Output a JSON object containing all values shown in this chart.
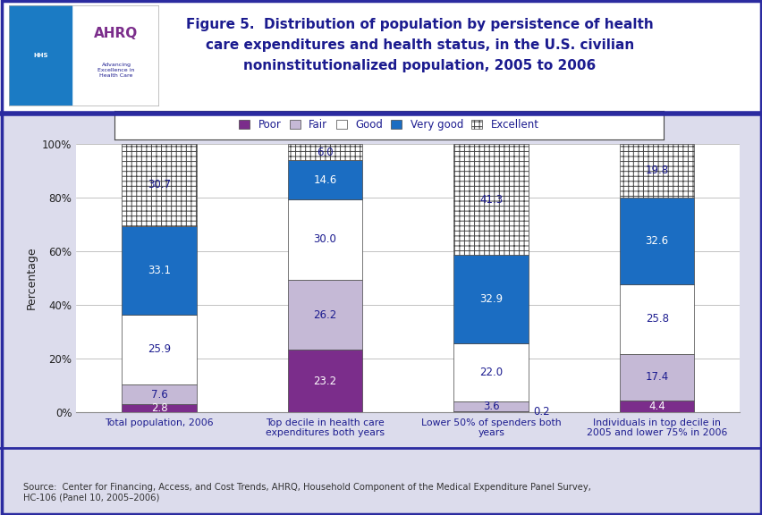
{
  "categories": [
    "Total population, 2006",
    "Top decile in health care\nexpenditures both years",
    "Lower 50% of spenders both\nyears",
    "Individuals in top decile in\n2005 and lower 75% in 2006"
  ],
  "series": {
    "Poor": [
      2.8,
      23.2,
      0.2,
      4.4
    ],
    "Fair": [
      7.6,
      26.2,
      3.6,
      17.4
    ],
    "Good": [
      25.9,
      30.0,
      22.0,
      25.8
    ],
    "Very good": [
      33.1,
      14.6,
      32.9,
      32.6
    ],
    "Excellent": [
      30.7,
      6.0,
      41.3,
      19.8
    ]
  },
  "colors": {
    "Poor": "#7B2D8B",
    "Fair": "#C5B9D6",
    "Good": "#FFFFFF",
    "Very good": "#1B6DC2",
    "Excellent": "#FFFFFF"
  },
  "hatch": {
    "Poor": "",
    "Fair": "",
    "Good": "",
    "Very good": "",
    "Excellent": "+++"
  },
  "label_outside": {
    "Poor": [
      true,
      true,
      true,
      true
    ],
    "Fair": [
      false,
      false,
      false,
      false
    ],
    "Good": [
      false,
      false,
      false,
      false
    ],
    "Very good": [
      false,
      false,
      false,
      false
    ],
    "Excellent": [
      false,
      false,
      false,
      false
    ]
  },
  "legend_order": [
    "Poor",
    "Fair",
    "Good",
    "Very good",
    "Excellent"
  ],
  "ylabel": "Percentage",
  "ylim": [
    0,
    100
  ],
  "yticks": [
    0,
    20,
    40,
    60,
    80,
    100
  ],
  "yticklabels": [
    "0%",
    "20%",
    "40%",
    "60%",
    "80%",
    "100%"
  ],
  "title_line1": "Figure 5.  Distribution of population by persistence of health",
  "title_line2": "care expenditures and health status, in the U.S. civilian",
  "title_line3": "noninstitutionalized population, 2005 to 2006",
  "source_text": "Source:  Center for Financing, Access, and Cost Trends, AHRQ, Household Component of the Medical Expenditure Panel Survey,\nHC-106 (Panel 10, 2005–2006)",
  "bar_width": 0.45,
  "figure_bg": "#DCDCEC",
  "plot_bg": "#FFFFFF",
  "border_color": "#2B2BA0",
  "label_color": "#1B1B8F",
  "title_color": "#1B1B8F"
}
